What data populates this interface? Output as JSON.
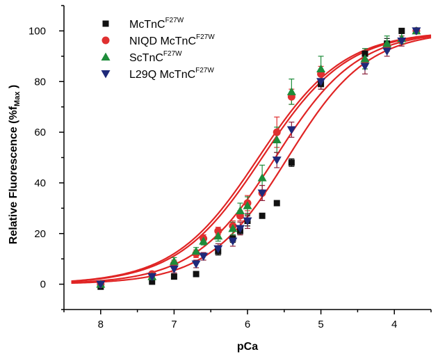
{
  "chart_data": {
    "type": "scatter",
    "xlabel": "pCa",
    "ylabel": {
      "main": "Relative  Fluorescence  (%f",
      "sub": "Max",
      "close": " )"
    },
    "xlim": [
      8.5,
      3.5
    ],
    "ylim": [
      -10,
      110
    ],
    "xticks": [
      8,
      7,
      6,
      5,
      4
    ],
    "yticks": [
      0,
      20,
      40,
      60,
      80,
      100
    ],
    "legend_position": "top-left",
    "series": [
      {
        "id": "mc",
        "legend": {
          "base": "McTnC",
          "sup": "F27W"
        },
        "marker": "square",
        "color": "#111111",
        "errorColor": "#111111",
        "points": [
          {
            "x": 8.0,
            "y": -1,
            "err": 1
          },
          {
            "x": 7.3,
            "y": 1,
            "err": 1
          },
          {
            "x": 7.0,
            "y": 3,
            "err": 1
          },
          {
            "x": 6.7,
            "y": 4,
            "err": 1
          },
          {
            "x": 6.4,
            "y": 13,
            "err": 1.5
          },
          {
            "x": 6.2,
            "y": 18,
            "err": 1.5
          },
          {
            "x": 6.1,
            "y": 21,
            "err": 1.5
          },
          {
            "x": 6.0,
            "y": 25,
            "err": 2
          },
          {
            "x": 5.8,
            "y": 27,
            "err": 1
          },
          {
            "x": 5.6,
            "y": 32,
            "err": 1
          },
          {
            "x": 5.4,
            "y": 48,
            "err": 1.5
          },
          {
            "x": 5.0,
            "y": 79,
            "err": 2
          },
          {
            "x": 4.4,
            "y": 91,
            "err": 2
          },
          {
            "x": 4.1,
            "y": 95,
            "err": 2
          },
          {
            "x": 3.9,
            "y": 100,
            "err": 1
          },
          {
            "x": 3.7,
            "y": 100,
            "err": 1
          }
        ],
        "fit": {
          "pca50": 5.45,
          "hill": 0.8
        }
      },
      {
        "id": "niqd",
        "legend": {
          "base": "NIQD McTnC",
          "sup": "F27W"
        },
        "marker": "circle",
        "color": "#e03030",
        "errorColor": "#e03030",
        "points": [
          {
            "x": 8.0,
            "y": 0,
            "err": 1
          },
          {
            "x": 7.3,
            "y": 4,
            "err": 1
          },
          {
            "x": 7.0,
            "y": 8,
            "err": 1.5
          },
          {
            "x": 6.7,
            "y": 12,
            "err": 1.5
          },
          {
            "x": 6.6,
            "y": 18,
            "err": 1.5
          },
          {
            "x": 6.4,
            "y": 21,
            "err": 1.5
          },
          {
            "x": 6.2,
            "y": 23,
            "err": 2
          },
          {
            "x": 6.1,
            "y": 27,
            "err": 2
          },
          {
            "x": 6.0,
            "y": 32,
            "err": 3
          },
          {
            "x": 5.8,
            "y": 36,
            "err": 3
          },
          {
            "x": 5.6,
            "y": 60,
            "err": 6
          },
          {
            "x": 5.4,
            "y": 74,
            "err": 3
          },
          {
            "x": 5.0,
            "y": 83,
            "err": 3
          },
          {
            "x": 4.4,
            "y": 88,
            "err": 3
          },
          {
            "x": 4.1,
            "y": 94,
            "err": 2
          },
          {
            "x": 3.7,
            "y": 100,
            "err": 1
          }
        ],
        "fit": {
          "pca50": 5.8,
          "hill": 0.75
        }
      },
      {
        "id": "sc",
        "legend": {
          "base": "ScTnC",
          "sup": "F27W"
        },
        "marker": "triangle-up",
        "color": "#1e8c3a",
        "errorColor": "#1e8c3a",
        "points": [
          {
            "x": 8.0,
            "y": 0,
            "err": 1
          },
          {
            "x": 7.3,
            "y": 3,
            "err": 1
          },
          {
            "x": 7.0,
            "y": 9,
            "err": 1.5
          },
          {
            "x": 6.7,
            "y": 13,
            "err": 1.5
          },
          {
            "x": 6.6,
            "y": 17,
            "err": 1.5
          },
          {
            "x": 6.4,
            "y": 19,
            "err": 2
          },
          {
            "x": 6.2,
            "y": 22,
            "err": 2.5
          },
          {
            "x": 6.1,
            "y": 29,
            "err": 3
          },
          {
            "x": 6.0,
            "y": 31,
            "err": 3.5
          },
          {
            "x": 5.8,
            "y": 42,
            "err": 5
          },
          {
            "x": 5.6,
            "y": 57,
            "err": 5
          },
          {
            "x": 5.4,
            "y": 76,
            "err": 5
          },
          {
            "x": 5.0,
            "y": 85,
            "err": 5
          },
          {
            "x": 4.4,
            "y": 89,
            "err": 4
          },
          {
            "x": 4.1,
            "y": 95,
            "err": 3
          },
          {
            "x": 3.9,
            "y": 97,
            "err": 2
          },
          {
            "x": 3.7,
            "y": 100,
            "err": 1
          }
        ],
        "fit": {
          "pca50": 5.85,
          "hill": 0.75
        }
      },
      {
        "id": "l29q",
        "legend": {
          "base": "L29Q McTnC",
          "sup": "F27W"
        },
        "marker": "triangle-down",
        "color": "#1f2a7a",
        "errorColor": "#8a1f3a",
        "points": [
          {
            "x": 8.0,
            "y": 0,
            "err": 1
          },
          {
            "x": 7.3,
            "y": 3,
            "err": 1
          },
          {
            "x": 7.0,
            "y": 6,
            "err": 1.5
          },
          {
            "x": 6.7,
            "y": 8,
            "err": 1.5
          },
          {
            "x": 6.6,
            "y": 11,
            "err": 1.5
          },
          {
            "x": 6.4,
            "y": 14,
            "err": 2
          },
          {
            "x": 6.2,
            "y": 17,
            "err": 2
          },
          {
            "x": 6.1,
            "y": 22,
            "err": 2.5
          },
          {
            "x": 6.0,
            "y": 25,
            "err": 3
          },
          {
            "x": 5.8,
            "y": 36,
            "err": 3
          },
          {
            "x": 5.6,
            "y": 49,
            "err": 3
          },
          {
            "x": 5.4,
            "y": 61,
            "err": 3
          },
          {
            "x": 5.0,
            "y": 80,
            "err": 3
          },
          {
            "x": 4.4,
            "y": 86,
            "err": 3
          },
          {
            "x": 4.1,
            "y": 92,
            "err": 2
          },
          {
            "x": 3.9,
            "y": 96,
            "err": 2
          },
          {
            "x": 3.7,
            "y": 100,
            "err": 1
          }
        ],
        "fit": {
          "pca50": 5.62,
          "hill": 0.78
        }
      }
    ]
  }
}
